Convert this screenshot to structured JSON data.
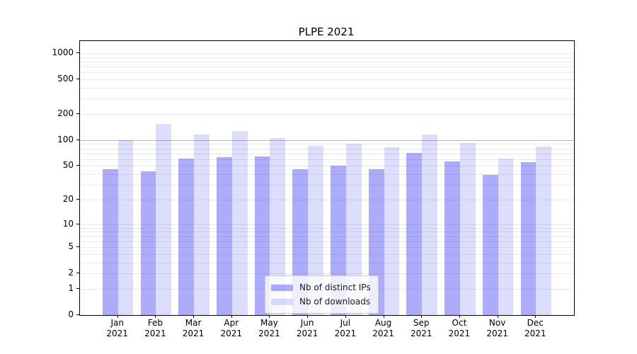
{
  "chart_data": {
    "type": "bar",
    "title": "PLPE 2021",
    "categories": [
      "Jan 2021",
      "Feb 2021",
      "Mar 2021",
      "Apr 2021",
      "May 2021",
      "Jun 2021",
      "Jul 2021",
      "Aug 2021",
      "Sep 2021",
      "Oct 2021",
      "Nov 2021",
      "Dec 2021"
    ],
    "series": [
      {
        "name": "Nb of distinct IPs",
        "color": "rgba(25,25,240,0.36)",
        "values": [
          46,
          43,
          61,
          63,
          64,
          46,
          50,
          46,
          71,
          57,
          39,
          55
        ]
      },
      {
        "name": "Nb of downloads",
        "color": "rgba(25,25,240,0.15)",
        "values": [
          100,
          154,
          116,
          128,
          106,
          86,
          90,
          83,
          116,
          92,
          61,
          84
        ]
      }
    ],
    "xlabel": "",
    "ylabel": "",
    "yscale": "log1p",
    "ylim": [
      0,
      1373
    ],
    "y_ticks": [
      1000,
      500,
      200,
      100,
      50,
      20,
      10,
      5,
      2,
      1,
      0
    ],
    "grid": {
      "horizontal": true,
      "minor_color": "#e9e9e9",
      "major_line_value": 100,
      "major_color": "#b8b8b8"
    },
    "legend": {
      "position": "lower-center",
      "entries": [
        "Nb of distinct IPs",
        "Nb of downloads"
      ]
    }
  },
  "figure": {
    "background": "#ffffff",
    "spine_color": "#000000"
  }
}
